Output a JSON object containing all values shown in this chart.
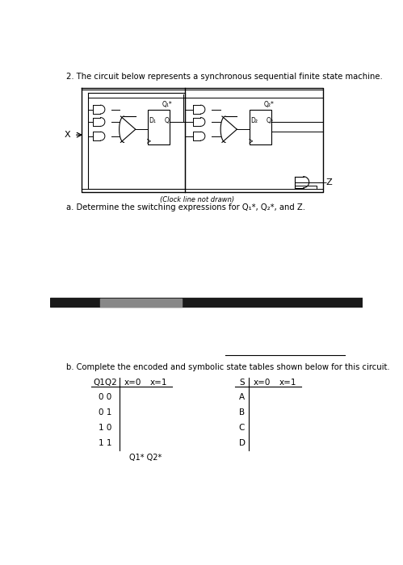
{
  "title": "2. The circuit below represents a synchronous sequential finite state machine.",
  "circuit_note": "(Clock line not drawn)",
  "part_a_text": "a. Determine the switching expressions for Q₁*, Q₂*, and Z.",
  "part_b_text": "b. Complete the encoded and symbolic state tables shown below for this circuit.",
  "table1_header": [
    "Q1Q2",
    "x=0",
    "x=1"
  ],
  "table1_rows": [
    "0 0",
    "0 1",
    "1 0",
    "1 1"
  ],
  "table1_footer": "Q1* Q2*",
  "table2_header": [
    "S",
    "x=0",
    "x=1"
  ],
  "table2_rows": [
    "A",
    "B",
    "C",
    "D"
  ],
  "bg_color": "#ffffff",
  "text_color": "#000000",
  "band_color": "#1a1a1a",
  "band_light_color": "#888888"
}
